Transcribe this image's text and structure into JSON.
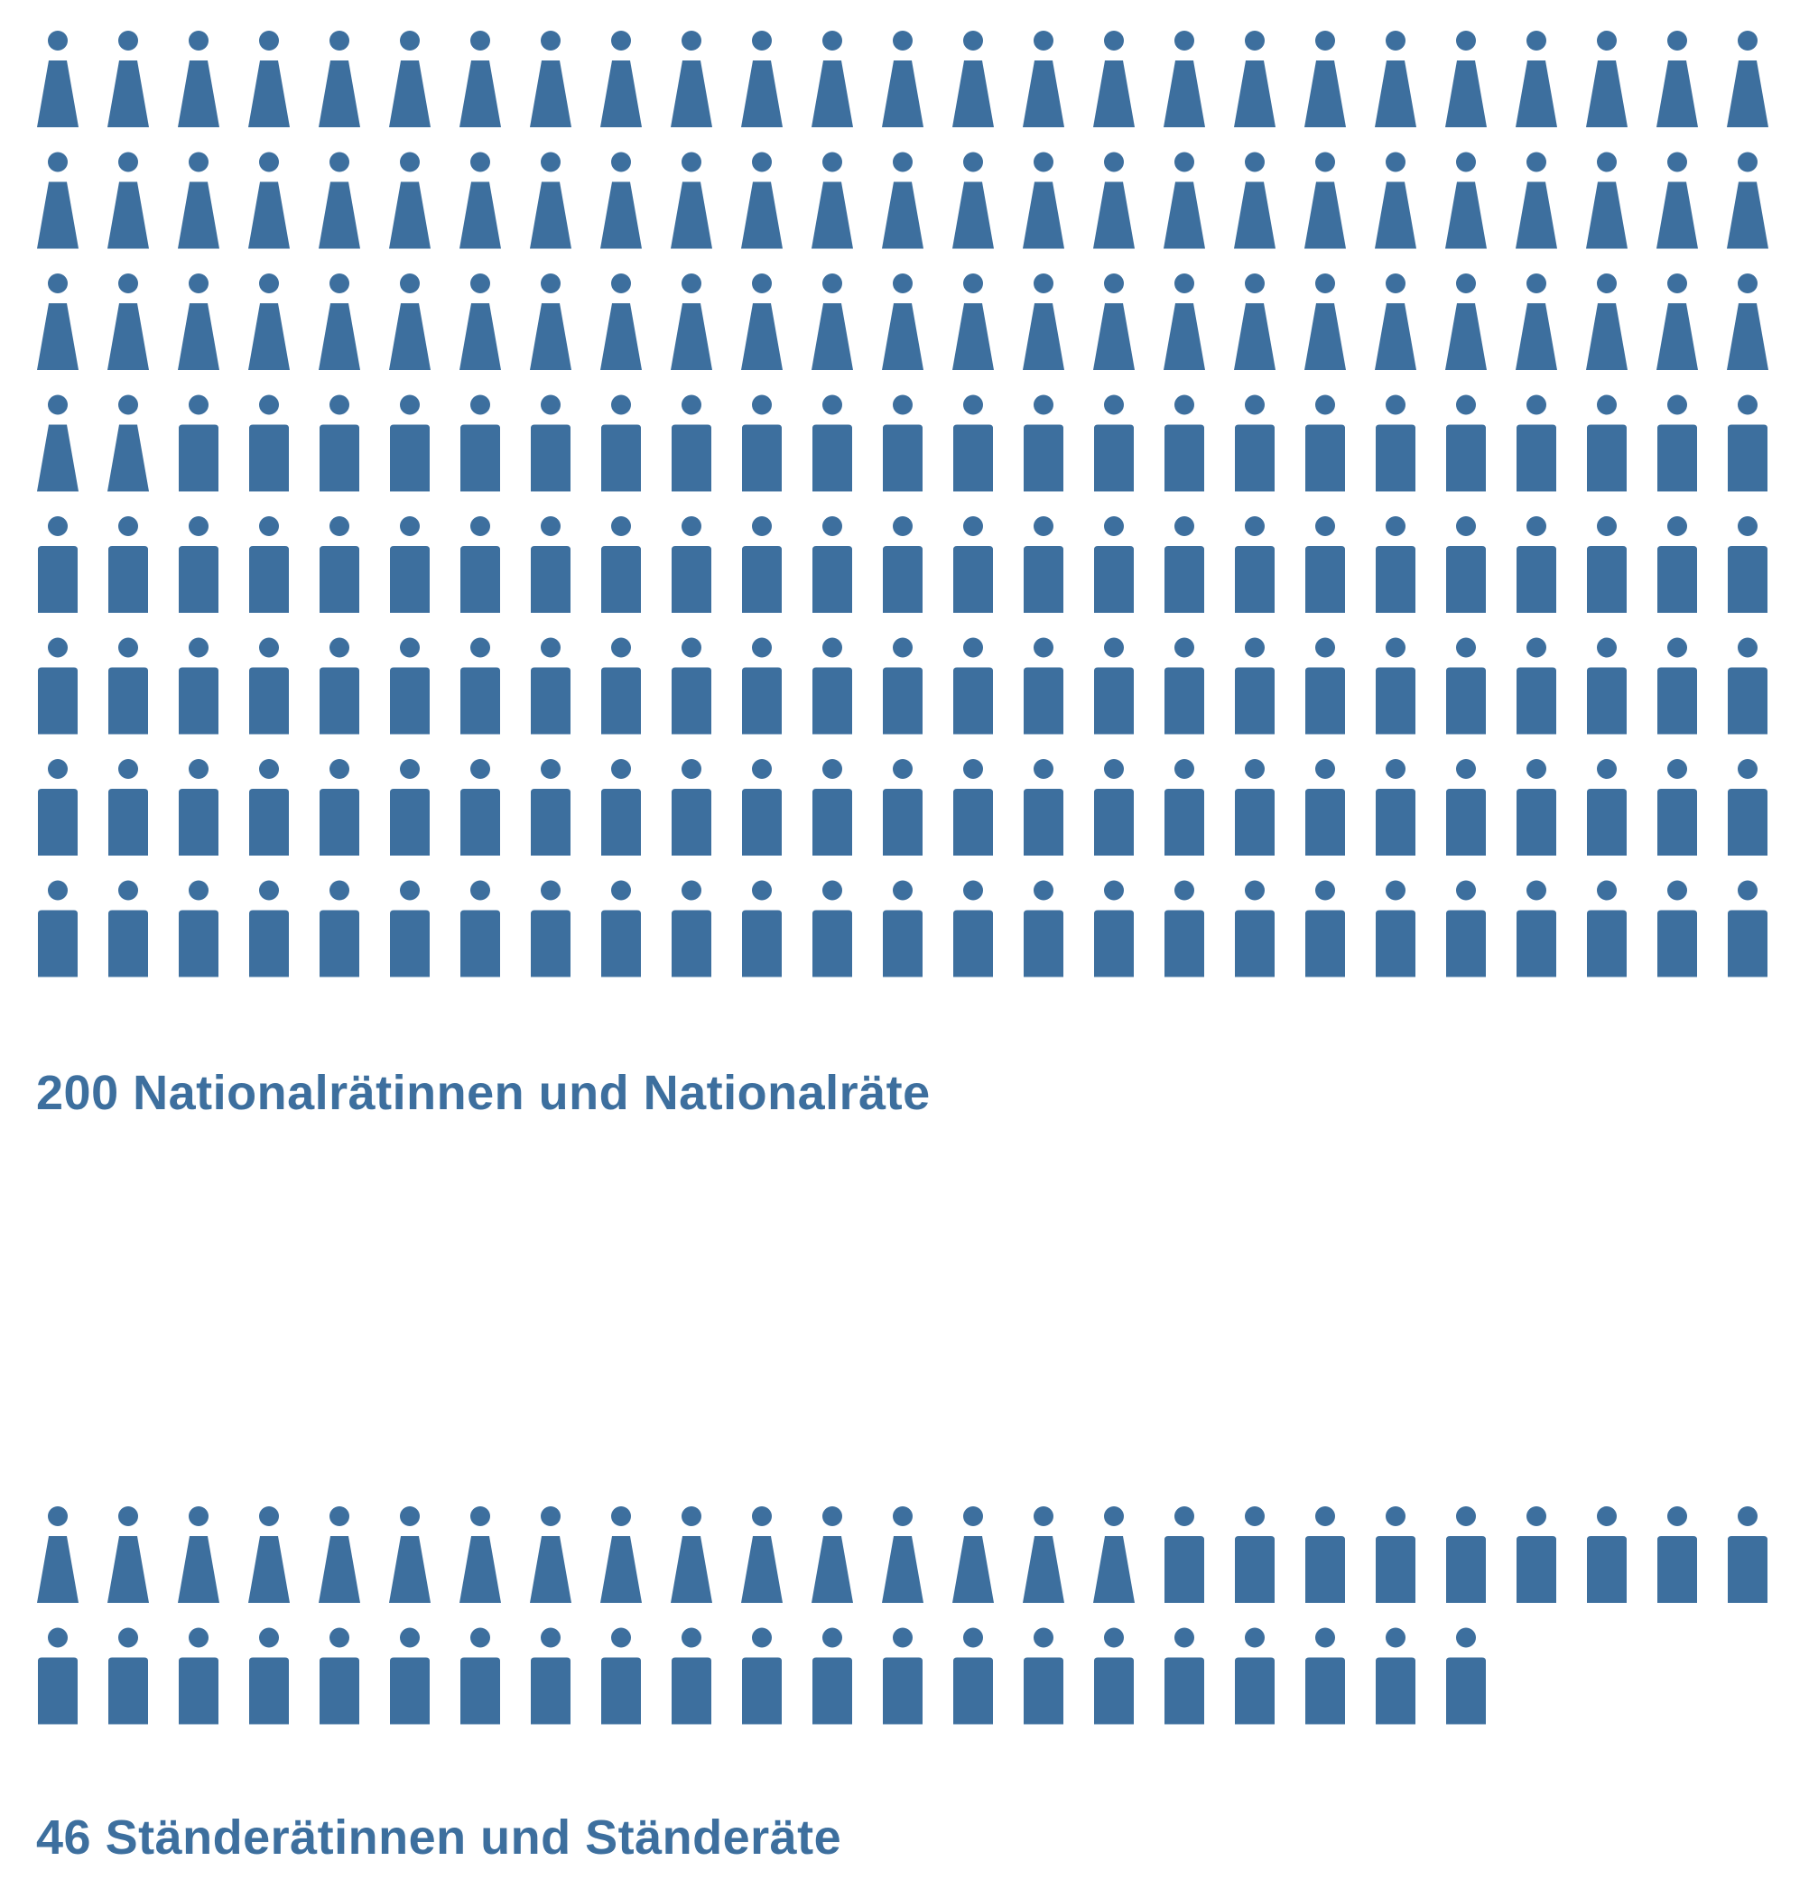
{
  "colors": {
    "figure": "#3d6f9e",
    "text": "#3d6f9e",
    "background": "#ffffff"
  },
  "chart_data": [
    {
      "type": "pictogram",
      "caption": "200 Nationalrätinnen und Nationalräte",
      "total": 200,
      "per_row": 25,
      "series": [
        {
          "icon": "female-figure-icon",
          "count": 77
        },
        {
          "icon": "male-figure-icon",
          "count": 123
        }
      ]
    },
    {
      "type": "pictogram",
      "caption": "46 Ständerätinnen und Ständeräte",
      "total": 46,
      "per_row": 25,
      "series": [
        {
          "icon": "female-figure-icon",
          "count": 16
        },
        {
          "icon": "male-figure-icon",
          "count": 30
        }
      ]
    }
  ]
}
